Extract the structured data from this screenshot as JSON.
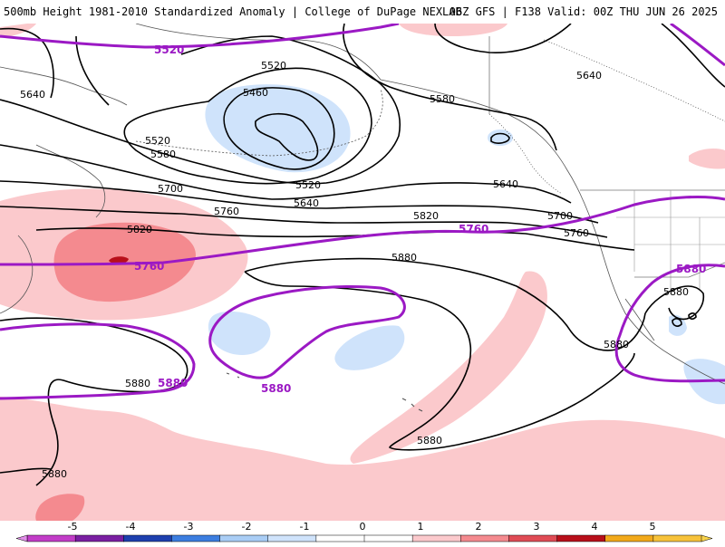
{
  "header": {
    "left": "500mb Height 1981-2010 Standardized Anomaly | College of DuPage NEXLAB",
    "right": "06Z GFS | F138 Valid: 00Z THU JUN 26 2025"
  },
  "contour_labels": [
    {
      "id": "5520-a",
      "text": "5520"
    },
    {
      "id": "5460",
      "text": "5460"
    },
    {
      "id": "5520-b",
      "text": "5520"
    },
    {
      "id": "5580-a",
      "text": "5580"
    },
    {
      "id": "5520-c",
      "text": "5520"
    },
    {
      "id": "5580-b",
      "text": "5580"
    },
    {
      "id": "5640-a",
      "text": "5640"
    },
    {
      "id": "5640-b",
      "text": "5640"
    },
    {
      "id": "5640-c",
      "text": "5640"
    },
    {
      "id": "5640-d",
      "text": "5640"
    },
    {
      "id": "5700-a",
      "text": "5700"
    },
    {
      "id": "5700-b",
      "text": "5700"
    },
    {
      "id": "5760-a",
      "text": "5760"
    },
    {
      "id": "5760-b",
      "text": "5760"
    },
    {
      "id": "5820-a",
      "text": "5820"
    },
    {
      "id": "5820-b",
      "text": "5820"
    },
    {
      "id": "5880-a",
      "text": "5880"
    },
    {
      "id": "5880-b",
      "text": "5880"
    },
    {
      "id": "5880-c",
      "text": "5880"
    },
    {
      "id": "5880-d",
      "text": "5880"
    },
    {
      "id": "5880-e",
      "text": "5880"
    },
    {
      "id": "5880-f",
      "text": "5880"
    }
  ],
  "reference_labels": [
    {
      "id": "5520",
      "text": "5520"
    },
    {
      "id": "5760-a",
      "text": "5760"
    },
    {
      "id": "5760-b",
      "text": "5760"
    },
    {
      "id": "5880-a",
      "text": "5880"
    },
    {
      "id": "5880-b",
      "text": "5880"
    },
    {
      "id": "5880-c",
      "text": "5880"
    }
  ],
  "colorbar": {
    "ticks": [
      "-5",
      "-4",
      "-3",
      "-2",
      "-1",
      "0",
      "1",
      "2",
      "3",
      "4",
      "5"
    ],
    "colors": [
      "#c23dc8",
      "#7a1fa2",
      "#1d3fae",
      "#3c7ee0",
      "#a9cdf5",
      "#cfe3fb",
      "#ffffff",
      "#ffffff",
      "#fbc9cc",
      "#f48a8f",
      "#e04b55",
      "#b80f1a",
      "#f2a91a",
      "#f7c23a"
    ],
    "reference_line_color": "#9b19c4",
    "positive_anomaly_color": "#fbc9cc",
    "negative_anomaly_color": "#cfe3fb"
  }
}
